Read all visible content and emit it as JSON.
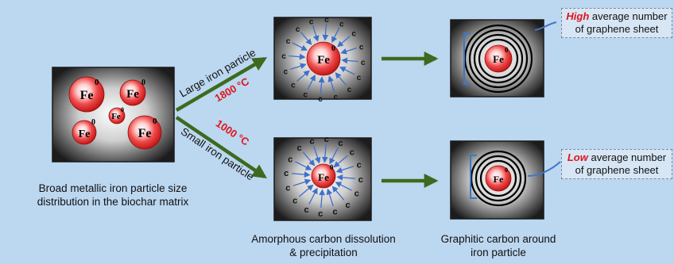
{
  "labels": {
    "fe": "Fe",
    "fe_sup": "0",
    "carbon": "c"
  },
  "paths": {
    "large": "Large iron particle",
    "large_temp": "1800 °C",
    "small": "Small iron particle",
    "small_temp": "1000 °C"
  },
  "captions": {
    "left_line1": "Broad metallic iron particle size",
    "left_line2": "distribution in the biochar matrix",
    "middle_line1": "Amorphous carbon dissolution",
    "middle_line2": "& precipitation",
    "right_line1": "Graphitic carbon around",
    "right_line2": "iron particle"
  },
  "callouts": {
    "high_keyword": "High",
    "high_rest": " average number",
    "high_line2": "of graphene sheet",
    "low_keyword": "Low",
    "low_rest": " average number",
    "low_line2": "of graphene sheet"
  },
  "colors": {
    "background": "#bcd7f0",
    "arrow_green": "#3d6a1e",
    "particle_red": "#e32626",
    "temperature_red": "#e0131b",
    "carbon_arrow_blue": "#3f6fc9",
    "bracket_blue": "#3b78c8"
  }
}
